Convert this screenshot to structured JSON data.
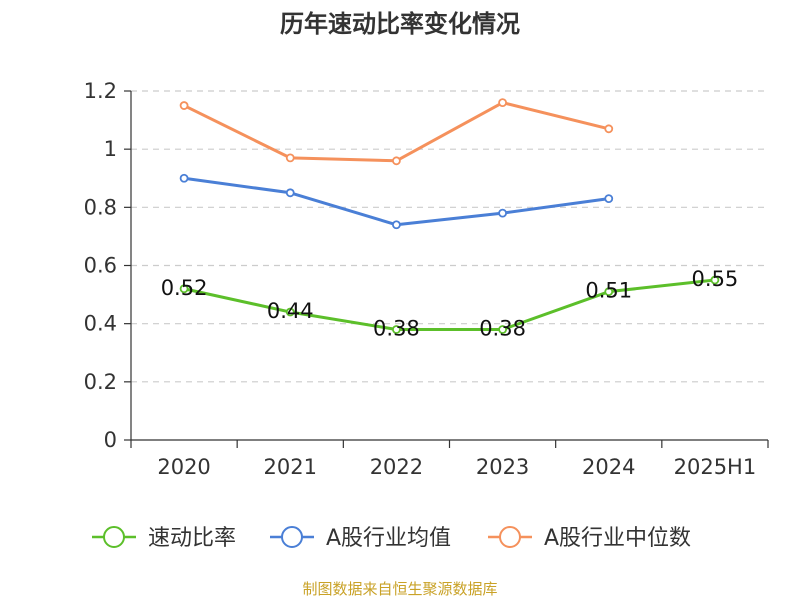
{
  "chart_data": {
    "type": "line",
    "title": "历年速动比率变化情况",
    "categories": [
      "2020",
      "2021",
      "2022",
      "2023",
      "2024",
      "2025H1"
    ],
    "y_ticks": [
      "0",
      "0.2",
      "0.4",
      "0.6",
      "0.8",
      "1",
      "1.2"
    ],
    "ylim": [
      0,
      1.2
    ],
    "grid": true,
    "legend_position": "bottom",
    "series": [
      {
        "name": "速动比率",
        "color": "#5cbf2a",
        "values": [
          0.52,
          0.44,
          0.38,
          0.38,
          0.51,
          0.55
        ],
        "labels": [
          "0.52",
          "0.44",
          "0.38",
          "0.38",
          "0.51",
          "0.55"
        ]
      },
      {
        "name": "A股行业均值",
        "color": "#4a7fd6",
        "values": [
          0.9,
          0.85,
          0.74,
          0.78,
          0.83,
          null
        ]
      },
      {
        "name": "A股行业中位数",
        "color": "#f5915c",
        "values": [
          1.15,
          0.97,
          0.96,
          1.16,
          1.07,
          null
        ]
      }
    ]
  },
  "footer": {
    "source": "制图数据来自恒生聚源数据库"
  }
}
